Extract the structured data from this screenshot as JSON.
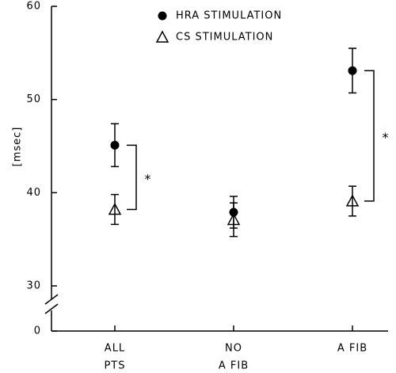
{
  "chart_data": {
    "type": "scatter",
    "y_label": "[msec]",
    "categories": [
      [
        "ALL",
        "PTS"
      ],
      [
        "NO",
        "A FIB"
      ],
      [
        "A FIB"
      ]
    ],
    "series": [
      {
        "name": "HRA STIMULATION",
        "marker": "circle",
        "color": "#000000",
        "values": [
          45.1,
          37.9,
          53.1
        ],
        "errors": [
          2.3,
          1.7,
          2.4
        ]
      },
      {
        "name": "CS STIMULATION",
        "marker": "triangle",
        "color": "#000000",
        "values": [
          38.2,
          37.1,
          39.1
        ],
        "errors": [
          1.6,
          1.8,
          1.6
        ]
      }
    ],
    "annotations": [
      {
        "text": "*",
        "category": 0
      },
      {
        "text": "*",
        "category": 2
      }
    ],
    "ylim": [
      0,
      60
    ],
    "yticks": [
      0,
      30,
      40,
      50,
      60
    ],
    "y_break": true
  }
}
